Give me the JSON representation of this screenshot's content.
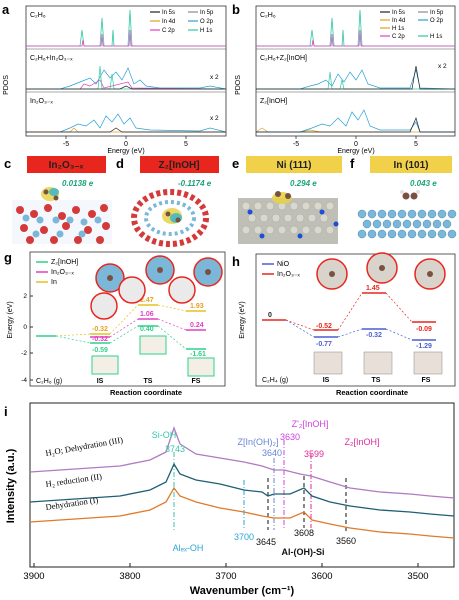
{
  "panels": {
    "a": {
      "letter": "a",
      "rows": [
        "C₂H₆",
        "C₂H₆+In₂O₃₋ₓ",
        "In₂O₃₋ₓ"
      ],
      "scale_mid": "x 2",
      "scale_bot": "x 2",
      "legend": [
        "In 5s",
        "In 5p",
        "In 4d",
        "O 2p",
        "C 2p",
        "H 1s"
      ],
      "legend_colors": [
        "#222222",
        "#8a8a8a",
        "#e0a020",
        "#2a9fd6",
        "#e040c0",
        "#30c8a0"
      ],
      "ylabel": "PDOS",
      "xlabel": "Energy (eV)",
      "xticks": [
        "-5",
        "0",
        "5"
      ]
    },
    "b": {
      "letter": "b",
      "rows": [
        "C₂H₆",
        "C₂H₆+Z₂[InOH]",
        "Z₂[InOH]"
      ],
      "scale_mid": "x 2",
      "legend": [
        "In 5s",
        "In 5p",
        "In 4d",
        "O 2p",
        "H 1s",
        "C 2p",
        "H 1s"
      ],
      "legend_colors": [
        "#222222",
        "#8a8a8a",
        "#e0a020",
        "#2a9fd6",
        "#e0a020",
        "#e040c0",
        "#30c8a0"
      ],
      "ylabel": "PDOS",
      "xlabel": "Energy (eV)",
      "xticks": [
        "-5",
        "0",
        "5"
      ]
    },
    "c": {
      "letter": "c",
      "header": "In₂O₃₋ₓ",
      "charge": "0.0138 e"
    },
    "d": {
      "letter": "d",
      "header": "Z₂[InOH]",
      "charge": "-0.1174 e"
    },
    "e": {
      "letter": "e",
      "header": "Ni (111)",
      "charge": "0.294 e"
    },
    "f": {
      "letter": "f",
      "header": "In (101)",
      "charge": "0.043 e"
    },
    "g": {
      "letter": "g",
      "legend": [
        "Z₂[InOH]",
        "In₂O₃₋ₓ",
        "In"
      ],
      "ylabel": "Energy (eV)",
      "xlabel": "Reaction coordinate",
      "yticks": [
        "2",
        "0",
        "-2",
        "-4"
      ],
      "start_label": "C₂H₆ (g)",
      "states": [
        "IS",
        "TS",
        "FS"
      ],
      "values": {
        "In": [
          "-0.32",
          "2.47",
          "1.93"
        ],
        "In2O3": [
          "-0.32",
          "1.06",
          "0.24"
        ],
        "Z2": [
          "-0.59",
          "0.40",
          "-1.61"
        ]
      }
    },
    "h": {
      "letter": "h",
      "legend": [
        "NiO",
        "In₂O₃₋ₓ"
      ],
      "ylabel": "Energy (eV)",
      "xlabel": "Reaction coordinate",
      "start_value": "0",
      "start_label": "C₂H₄ (g)",
      "states": [
        "IS",
        "TS",
        "FS"
      ],
      "values": {
        "In2O3": [
          "-0.52",
          "1.45",
          "-0.09"
        ],
        "NiO": [
          "-0.77",
          "-0.32",
          "-1.29"
        ]
      }
    },
    "i": {
      "letter": "i",
      "ylabel": "Intensity (a.u.)",
      "xlabel": "Wavenumber (cm⁻¹)",
      "xticks": [
        "3900",
        "3800",
        "3700",
        "3600",
        "3500"
      ],
      "traces": [
        "H₂O; Dehydration (III)",
        "H₂ reduction (II)",
        "Dehydration (I)"
      ],
      "trace_colors": [
        "#b07bc0",
        "#1f5f73",
        "#e07a2a"
      ],
      "bands": {
        "sioh_label": "Si-OH",
        "sioh": "3743",
        "alex_label": "Alₑₓ-OH",
        "alex": "3700",
        "z_inoh2_label": "Z[In(OH)₂]",
        "z_inoh2": "3640",
        "zprime_label": "Z'₂[InOH]",
        "zprime": "3630",
        "z2_label": "Z₂[InOH]",
        "z2": "3599",
        "b3645": "3645",
        "b3608": "3608",
        "b3560": "3560",
        "alohsi": "Al-(OH)-Si"
      }
    }
  }
}
